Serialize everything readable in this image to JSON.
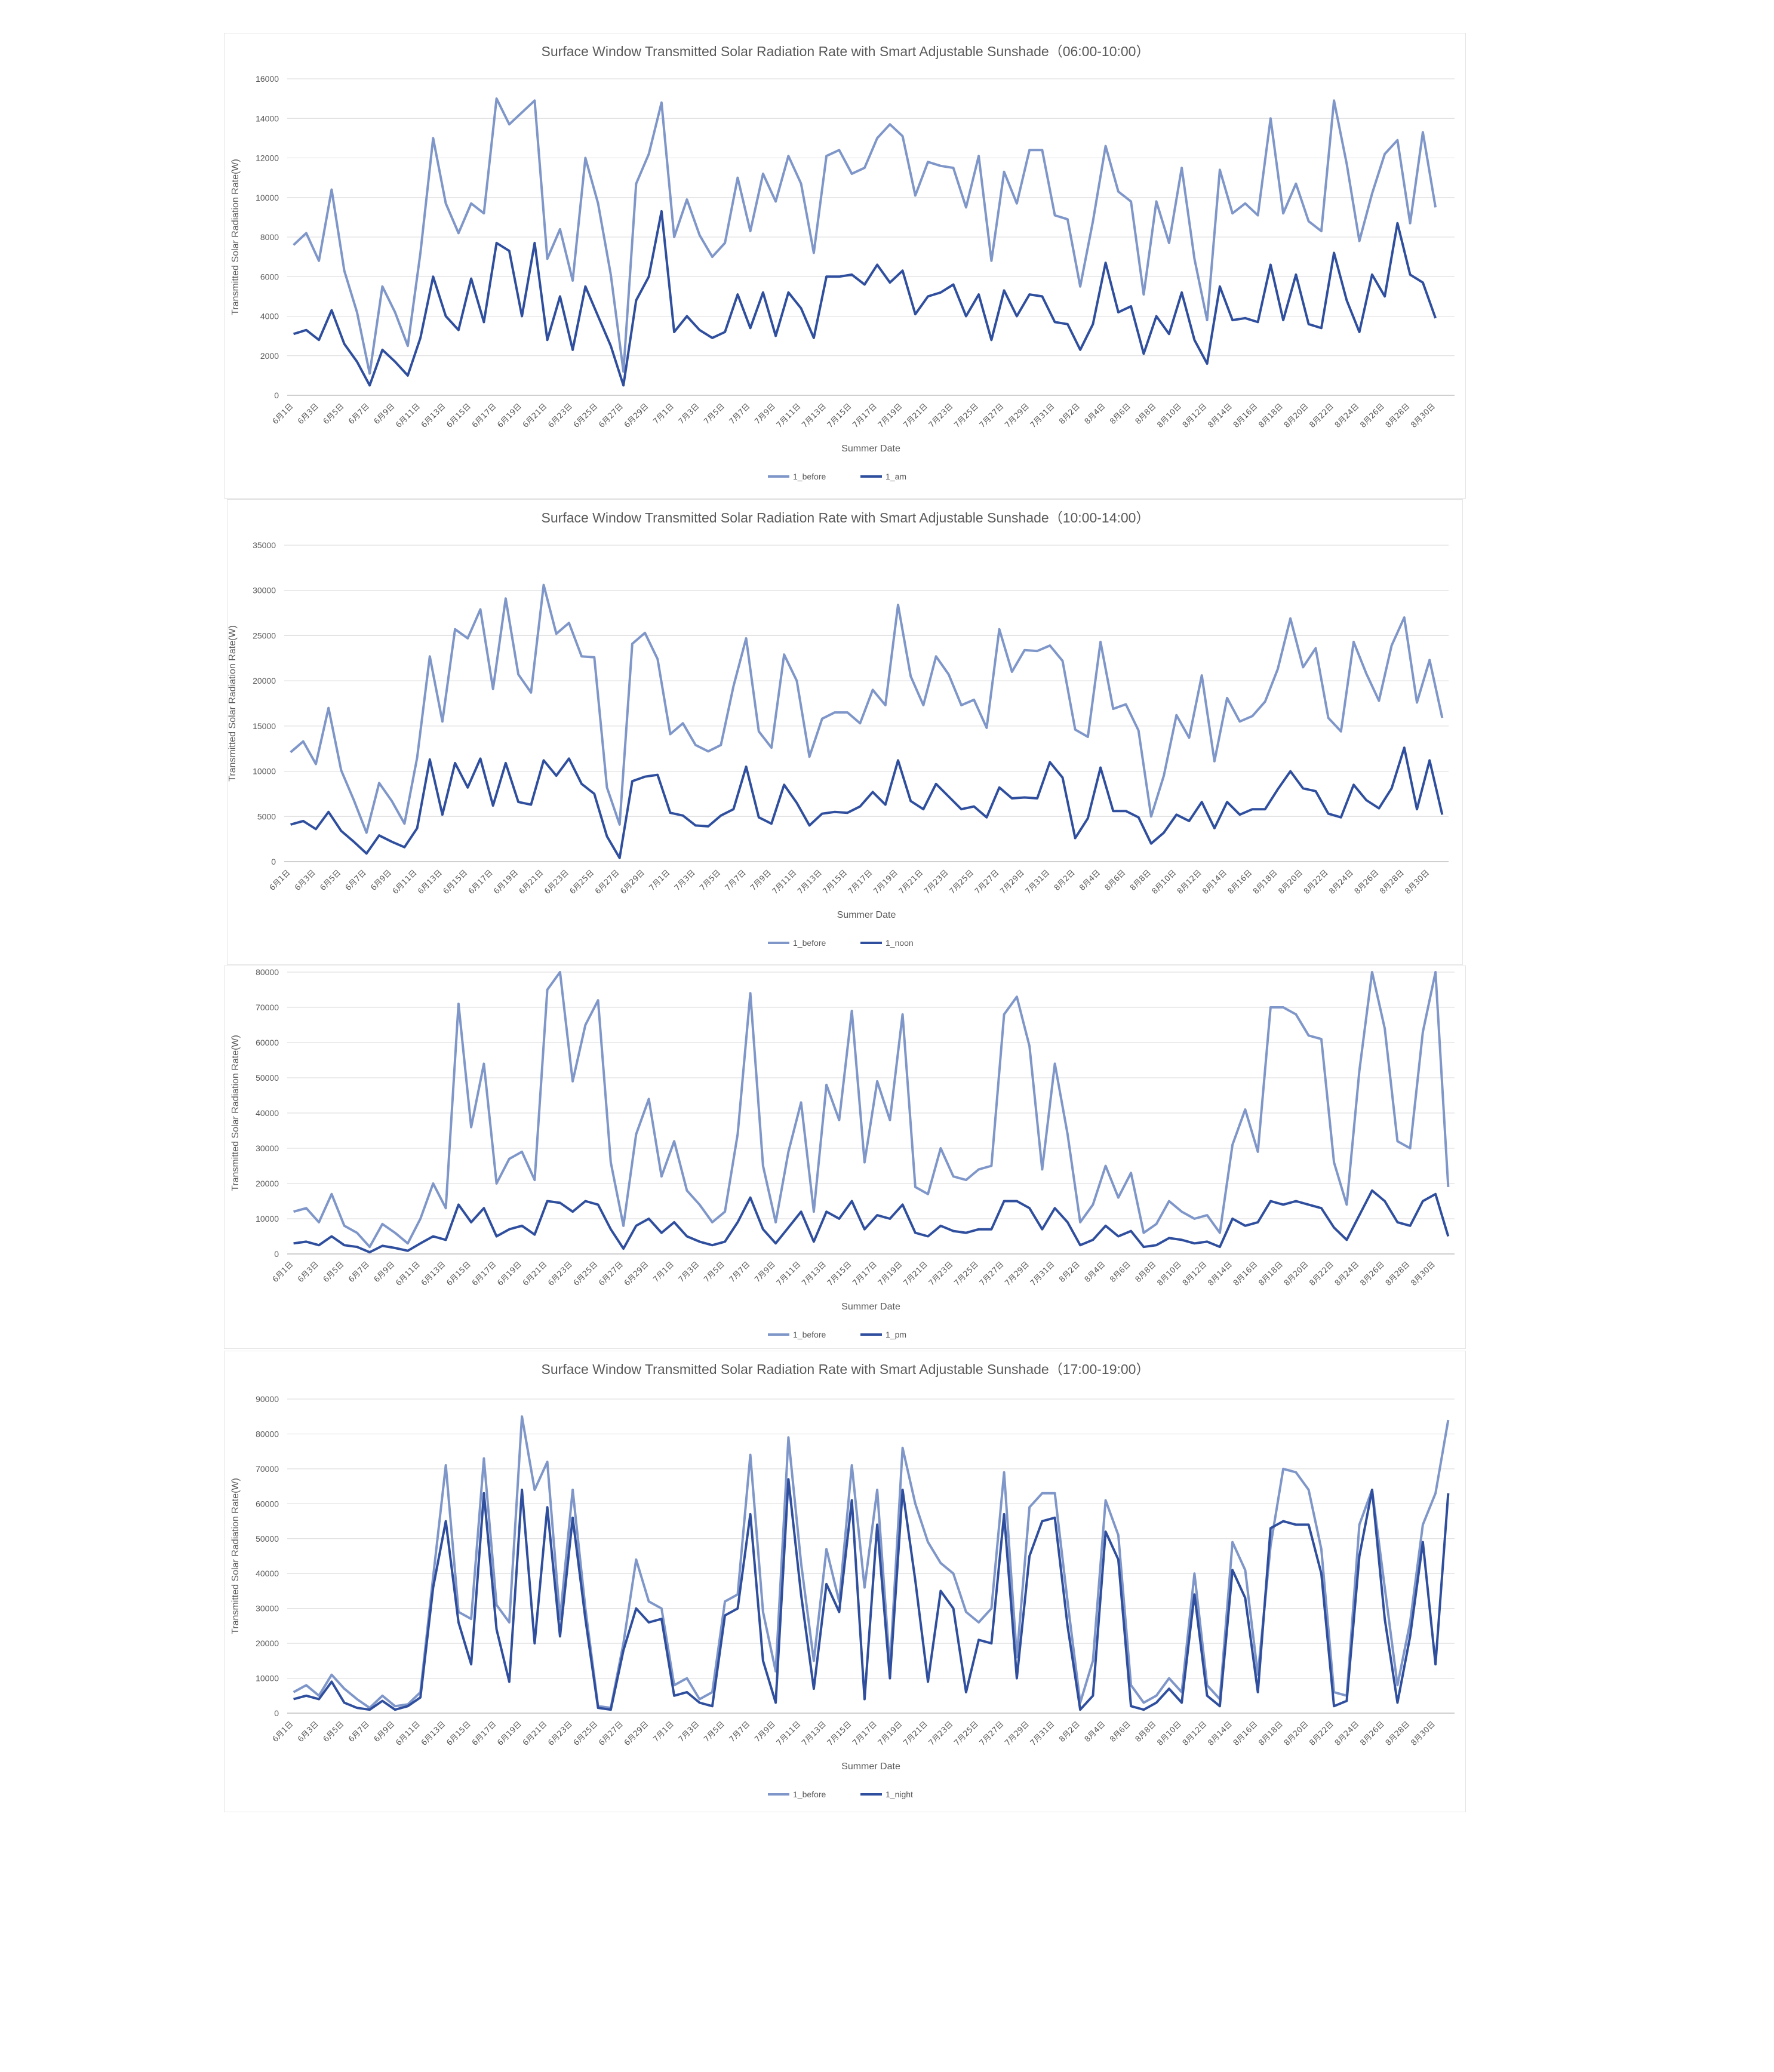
{
  "colors": {
    "before": "#7f96c9",
    "after": "#2f4f9e",
    "grid": "#d9d9d9",
    "text": "#595959"
  },
  "dates": [
    "6月1日",
    "6月2日",
    "6月3日",
    "6月4日",
    "6月5日",
    "6月6日",
    "6月7日",
    "6月8日",
    "6月9日",
    "6月10日",
    "6月11日",
    "6月12日",
    "6月13日",
    "6月14日",
    "6月15日",
    "6月16日",
    "6月17日",
    "6月18日",
    "6月19日",
    "6月20日",
    "6月21日",
    "6月22日",
    "6月23日",
    "6月24日",
    "6月25日",
    "6月26日",
    "6月27日",
    "6月28日",
    "6月29日",
    "6月30日",
    "7月1日",
    "7月2日",
    "7月3日",
    "7月4日",
    "7月5日",
    "7月6日",
    "7月7日",
    "7月8日",
    "7月9日",
    "7月10日",
    "7月11日",
    "7月12日",
    "7月13日",
    "7月14日",
    "7月15日",
    "7月16日",
    "7月17日",
    "7月18日",
    "7月19日",
    "7月20日",
    "7月21日",
    "7月22日",
    "7月23日",
    "7月24日",
    "7月25日",
    "7月26日",
    "7月27日",
    "7月28日",
    "7月29日",
    "7月30日",
    "7月31日",
    "8月1日",
    "8月2日",
    "8月3日",
    "8月4日",
    "8月5日",
    "8月6日",
    "8月7日",
    "8月8日",
    "8月9日",
    "8月10日",
    "8月11日",
    "8月12日",
    "8月13日",
    "8月14日",
    "8月15日",
    "8月16日",
    "8月17日",
    "8月18日",
    "8月19日",
    "8月20日",
    "8月21日",
    "8月22日",
    "8月23日",
    "8月24日",
    "8月25日",
    "8月26日",
    "8月27日",
    "8月28日",
    "8月29日",
    "8月30日",
    "8月31日"
  ],
  "chart_data": [
    {
      "type": "line",
      "title": "Surface Window Transmitted Solar Radiation Rate with Smart Adjustable Sunshade（06:00-10:00）",
      "xlabel": "Summer Date",
      "ylabel": "Transmitted Solar Radiation Rate(W)",
      "ylim": [
        0,
        16000
      ],
      "yticks": [
        0,
        2000,
        4000,
        6000,
        8000,
        10000,
        12000,
        14000,
        16000
      ],
      "grid": true,
      "legend": "bottom",
      "series": [
        {
          "name": "1_before",
          "values": [
            7600,
            8200,
            6800,
            10400,
            6300,
            4200,
            1100,
            5500,
            4200,
            2500,
            7200,
            13000,
            9700,
            8200,
            9700,
            9200,
            15000,
            13700,
            14300,
            14900,
            6900,
            8400,
            5800,
            12000,
            9700,
            6100,
            1200,
            10700,
            12200,
            14800,
            8000,
            9900,
            8100,
            7000,
            7700,
            11000,
            8300,
            11200,
            9800,
            12100,
            10700,
            7200,
            12100,
            12400,
            11200,
            11500,
            13000,
            13700,
            13100,
            10100,
            11800,
            11600,
            11500,
            9500,
            12100,
            6800,
            11300,
            9700,
            12400,
            12400,
            9100,
            8900,
            5500,
            8800,
            12600,
            10300,
            9800,
            5100,
            9800,
            7700,
            11500,
            6900,
            3800,
            11400,
            9200,
            9700,
            9100,
            14000,
            9200,
            10700,
            8800,
            8300,
            14900,
            11700,
            7800,
            10200,
            12200,
            12900,
            8700,
            13300,
            9500
          ]
        },
        {
          "name": "1_am",
          "values": [
            3100,
            3300,
            2800,
            4300,
            2600,
            1700,
            500,
            2300,
            1700,
            1000,
            2900,
            6000,
            4000,
            3300,
            5900,
            3700,
            7700,
            7300,
            4000,
            7700,
            2800,
            5000,
            2300,
            5500,
            4000,
            2500,
            500,
            4800,
            6000,
            9300,
            3200,
            4000,
            3300,
            2900,
            3200,
            5100,
            3400,
            5200,
            3000,
            5200,
            4400,
            2900,
            6000,
            6000,
            6100,
            5600,
            6600,
            5700,
            6300,
            4100,
            5000,
            5200,
            5600,
            4000,
            5100,
            2800,
            5300,
            4000,
            5100,
            5000,
            3700,
            3600,
            2300,
            3600,
            6700,
            4200,
            4500,
            2100,
            4000,
            3100,
            5200,
            2800,
            1600,
            5500,
            3800,
            3900,
            3700,
            6600,
            3800,
            6100,
            3600,
            3400,
            7200,
            4800,
            3200,
            6100,
            5000,
            8700,
            6100,
            5700,
            3900
          ]
        }
      ]
    },
    {
      "type": "line",
      "title": "Surface Window Transmitted Solar Radiation Rate with Smart Adjustable Sunshade（10:00-14:00）",
      "xlabel": "Summer Date",
      "ylabel": "Transmitted Solar Radiation Rate(W)",
      "ylim": [
        0,
        35000
      ],
      "yticks": [
        0,
        5000,
        10000,
        15000,
        20000,
        25000,
        30000,
        35000
      ],
      "grid": true,
      "legend": "bottom",
      "series": [
        {
          "name": "1_before",
          "values": [
            12100,
            13300,
            10800,
            17000,
            10100,
            6800,
            3200,
            8700,
            6700,
            4200,
            11500,
            22700,
            15500,
            25700,
            24700,
            27900,
            19100,
            29100,
            20700,
            18700,
            30600,
            25200,
            26400,
            22700,
            22600,
            8200,
            4100,
            24100,
            25300,
            22400,
            14100,
            15300,
            12900,
            12200,
            12900,
            19400,
            24700,
            14400,
            12600,
            22900,
            20000,
            11600,
            15800,
            16500,
            16500,
            15300,
            19000,
            17300,
            28400,
            20500,
            17300,
            22700,
            20700,
            17300,
            17900,
            14800,
            25700,
            21000,
            23400,
            23300,
            23900,
            22200,
            14600,
            13800,
            24300,
            16900,
            17400,
            14500,
            5000,
            9500,
            16200,
            13700,
            20600,
            11100,
            18100,
            15500,
            16100,
            17700,
            21300,
            26900,
            21500,
            23600,
            15900,
            14400,
            24300,
            20800,
            17800,
            23900,
            27000,
            17600,
            22300,
            15900
          ]
        },
        {
          "name": "1_noon",
          "values": [
            4100,
            4500,
            3600,
            5500,
            3400,
            2200,
            900,
            2900,
            2200,
            1600,
            3700,
            11300,
            5200,
            10900,
            8200,
            11400,
            6200,
            10900,
            6600,
            6300,
            11200,
            9500,
            11400,
            8600,
            7500,
            2800,
            400,
            8900,
            9400,
            9600,
            5400,
            5100,
            4000,
            3900,
            5100,
            5800,
            10500,
            4900,
            4200,
            8500,
            6500,
            4000,
            5300,
            5500,
            5400,
            6100,
            7700,
            6300,
            11200,
            6700,
            5800,
            8600,
            7200,
            5800,
            6100,
            4900,
            8200,
            7000,
            7100,
            7000,
            11000,
            9300,
            2600,
            4800,
            10400,
            5600,
            5600,
            4900,
            2000,
            3200,
            5200,
            4500,
            6600,
            3700,
            6600,
            5200,
            5800,
            5800,
            8000,
            10000,
            8100,
            7800,
            5300,
            4900,
            8500,
            6800,
            5900,
            8100,
            12600,
            5800,
            11200,
            5200
          ]
        }
      ]
    },
    {
      "type": "line",
      "title": "",
      "xlabel": "Summer Date",
      "ylabel": "Transmitted Solar Radiation Rate(W)",
      "ylim": [
        0,
        80000
      ],
      "yticks": [
        0,
        10000,
        20000,
        30000,
        40000,
        50000,
        60000,
        70000,
        80000
      ],
      "grid": true,
      "legend": "bottom",
      "series": [
        {
          "name": "1_before",
          "values": [
            12000,
            13000,
            9000,
            17000,
            8000,
            6000,
            2000,
            8500,
            6000,
            3000,
            10000,
            20000,
            13000,
            71000,
            36000,
            54000,
            20000,
            27000,
            29000,
            21000,
            75000,
            80000,
            49000,
            65000,
            72000,
            26000,
            8000,
            34000,
            44000,
            22000,
            32000,
            18000,
            14000,
            9000,
            12000,
            34000,
            74000,
            25000,
            9000,
            29000,
            43000,
            12000,
            48000,
            38000,
            69000,
            26000,
            49000,
            38000,
            68000,
            19000,
            17000,
            30000,
            22000,
            21000,
            24000,
            25000,
            68000,
            73000,
            59000,
            24000,
            54000,
            34000,
            9000,
            14000,
            25000,
            16000,
            23000,
            6000,
            8500,
            15000,
            12000,
            10000,
            11000,
            6000,
            31000,
            41000,
            29000,
            70000,
            70000,
            68000,
            62000,
            61000,
            26000,
            14000,
            52000,
            80000,
            64000,
            32000,
            30000,
            63000,
            80000,
            19000
          ]
        },
        {
          "name": "1_pm",
          "values": [
            3000,
            3500,
            2500,
            5000,
            2500,
            2000,
            500,
            2300,
            1700,
            900,
            3000,
            5000,
            4000,
            14000,
            9000,
            13000,
            5000,
            7000,
            8000,
            5500,
            15000,
            14500,
            12000,
            15000,
            14000,
            7000,
            1500,
            8000,
            10000,
            6000,
            9000,
            5000,
            3500,
            2500,
            3500,
            9000,
            16000,
            7000,
            3000,
            7500,
            12000,
            3500,
            12000,
            10000,
            15000,
            7000,
            11000,
            10000,
            14000,
            6000,
            5000,
            8000,
            6500,
            6000,
            7000,
            7000,
            15000,
            15000,
            13000,
            7000,
            13000,
            9000,
            2500,
            4000,
            8000,
            5000,
            6500,
            2000,
            2500,
            4500,
            4000,
            3000,
            3500,
            2000,
            10000,
            8000,
            9000,
            15000,
            14000,
            15000,
            14000,
            13000,
            7500,
            4000,
            11000,
            18000,
            15000,
            9000,
            8000,
            15000,
            17000,
            5000
          ]
        }
      ]
    },
    {
      "type": "line",
      "title": "Surface Window Transmitted Solar Radiation Rate with Smart Adjustable Sunshade（17:00-19:00）",
      "xlabel": "Summer Date",
      "ylabel": "Transmitted Solar Radiation Rate(W)",
      "ylim": [
        0,
        90000
      ],
      "yticks": [
        0,
        10000,
        20000,
        30000,
        40000,
        50000,
        60000,
        70000,
        80000,
        90000
      ],
      "grid": true,
      "legend": "bottom",
      "series": [
        {
          "name": "1_before",
          "values": [
            6000,
            8000,
            5000,
            11000,
            7000,
            4000,
            1500,
            5000,
            2000,
            2500,
            6000,
            39000,
            71000,
            29000,
            27000,
            73000,
            31000,
            26000,
            85000,
            64000,
            72000,
            27000,
            64000,
            30000,
            2000,
            1500,
            20000,
            44000,
            32000,
            30000,
            8000,
            10000,
            4000,
            6000,
            32000,
            34000,
            74000,
            29000,
            12000,
            79000,
            43000,
            15000,
            47000,
            32000,
            71000,
            36000,
            64000,
            13000,
            76000,
            60000,
            49000,
            43000,
            40000,
            29000,
            26000,
            30000,
            69000,
            16000,
            59000,
            63000,
            63000,
            32000,
            3000,
            15000,
            61000,
            51000,
            8000,
            3000,
            5000,
            10000,
            6000,
            40000,
            8000,
            4000,
            49000,
            41000,
            11000,
            48000,
            70000,
            69000,
            64000,
            47000,
            6000,
            5000,
            54000,
            64000,
            36000,
            8000,
            26000,
            54000,
            63000,
            84000
          ]
        },
        {
          "name": "1_night",
          "values": [
            4000,
            5000,
            4000,
            9000,
            3000,
            1500,
            1000,
            3500,
            1000,
            2000,
            4500,
            36000,
            55000,
            26000,
            14000,
            63000,
            24000,
            9000,
            64000,
            20000,
            59000,
            22000,
            56000,
            27000,
            1500,
            1000,
            18000,
            30000,
            26000,
            27000,
            5000,
            6000,
            3000,
            2000,
            28000,
            30000,
            57000,
            15000,
            3000,
            67000,
            34000,
            7000,
            37000,
            29000,
            61000,
            4000,
            54000,
            10000,
            64000,
            38000,
            9000,
            35000,
            30000,
            6000,
            21000,
            20000,
            57000,
            10000,
            45000,
            55000,
            56000,
            25000,
            1000,
            5000,
            52000,
            44000,
            2000,
            1000,
            3000,
            7000,
            3000,
            34000,
            5000,
            2000,
            41000,
            33000,
            6000,
            53000,
            55000,
            54000,
            54000,
            40000,
            2000,
            3500,
            45000,
            64000,
            27000,
            3000,
            22000,
            49000,
            14000,
            63000
          ]
        }
      ]
    }
  ]
}
